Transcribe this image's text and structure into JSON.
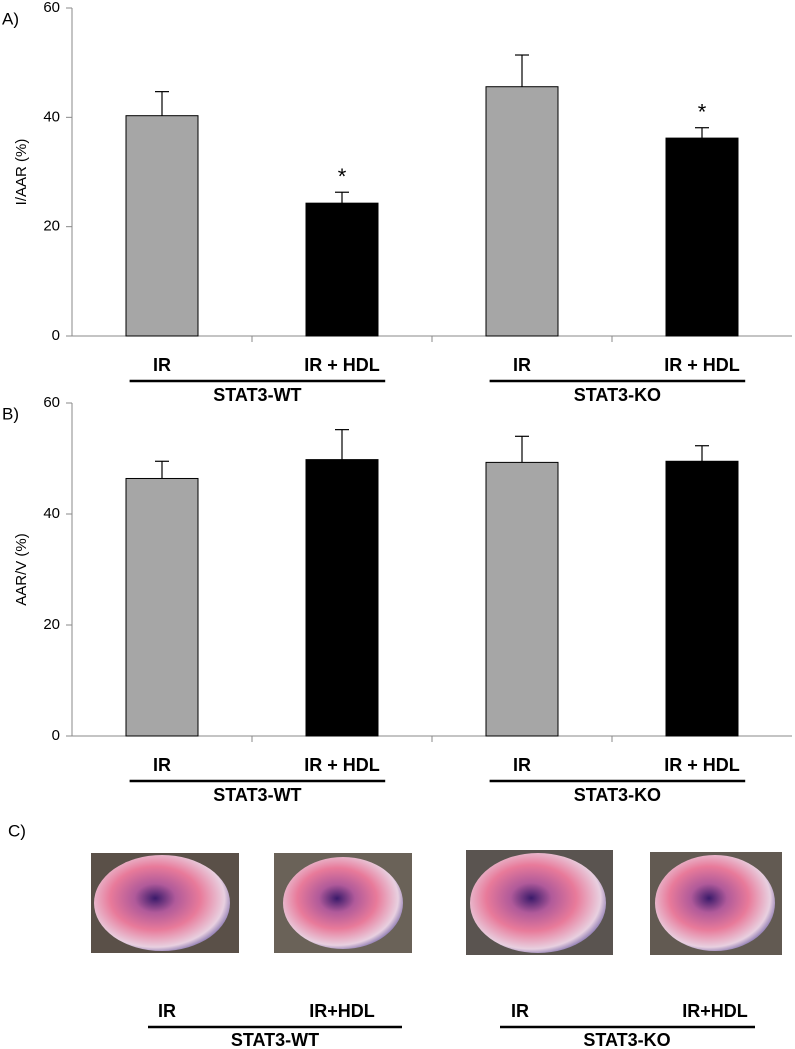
{
  "chart_data": [
    {
      "type": "bar",
      "panel_label": "A)",
      "y_label": "I/AAR (%)",
      "categories": [
        "IR",
        "IR + HDL",
        "IR",
        "IR + HDL"
      ],
      "values": [
        40.3,
        24.3,
        45.6,
        36.2
      ],
      "errors": [
        4.4,
        2.0,
        5.8,
        1.9
      ],
      "colors": [
        "#a6a6a6",
        "#000000",
        "#a6a6a6",
        "#000000"
      ],
      "groups": [
        "STAT3-WT",
        "STAT3-KO"
      ],
      "annotations": [
        {
          "text": "*",
          "x": "IR + HDL"
        }
      ],
      "ylim": [
        0,
        60
      ],
      "yticks": [
        0,
        20,
        40,
        60
      ]
    },
    {
      "type": "bar",
      "panel_label": "B)",
      "y_label": "AAR/V (%)",
      "categories": [
        "IR",
        "IR + HDL",
        "IR",
        "IR + HDL"
      ],
      "values": [
        46.4,
        49.8,
        49.3,
        49.5
      ],
      "errors": [
        3.1,
        5.4,
        4.7,
        2.8
      ],
      "colors": [
        "#a6a6a6",
        "#000000",
        "#a6a6a6",
        "#000000"
      ],
      "groups": [
        "STAT3-WT",
        "STAT3-KO"
      ],
      "annotations": [],
      "ylim": [
        0,
        60
      ],
      "yticks": [
        0,
        20,
        40,
        60
      ]
    }
  ],
  "panel_c": {
    "panel_label": "C)",
    "labels": [
      "IR",
      "IR+HDL",
      "IR",
      "IR+HDL"
    ],
    "groups": [
      "STAT3-WT",
      "STAT3-KO"
    ]
  }
}
